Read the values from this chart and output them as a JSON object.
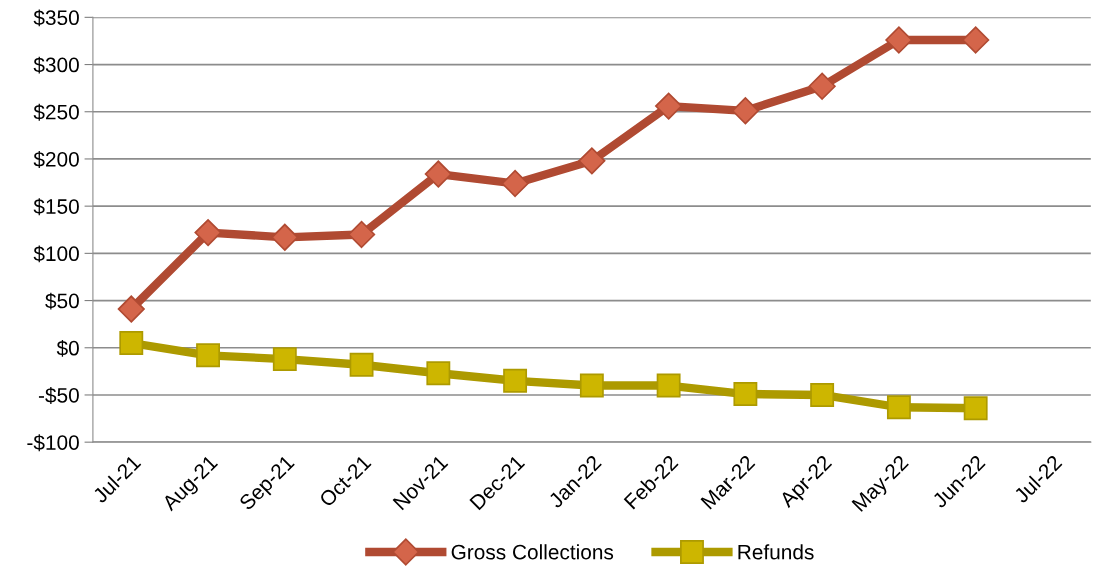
{
  "chart_data": {
    "type": "line",
    "categories": [
      "Jul-21",
      "Aug-21",
      "Sep-21",
      "Oct-21",
      "Nov-21",
      "Dec-21",
      "Jan-22",
      "Feb-22",
      "Mar-22",
      "Apr-22",
      "May-22",
      "Jun-22",
      "Jul-22"
    ],
    "series": [
      {
        "name": "Gross Collections",
        "color": "#b04a32",
        "marker": "diamond",
        "values": [
          41,
          122,
          117,
          120,
          184,
          174,
          198,
          256,
          251,
          277,
          326,
          326,
          null
        ]
      },
      {
        "name": "Refunds",
        "color": "#ad9a00",
        "marker": "square",
        "values": [
          5,
          -8,
          -12,
          -18,
          -27,
          -35,
          -40,
          -40,
          -49,
          -50,
          -63,
          -64,
          null
        ]
      }
    ],
    "ylim": [
      -100,
      350
    ],
    "yticks": [
      {
        "value": -100,
        "label": "-$100"
      },
      {
        "value": -50,
        "label": "-$50"
      },
      {
        "value": 0,
        "label": "$0"
      },
      {
        "value": 50,
        "label": "$50"
      },
      {
        "value": 100,
        "label": "$100"
      },
      {
        "value": 150,
        "label": "$150"
      },
      {
        "value": 200,
        "label": "$200"
      },
      {
        "value": 250,
        "label": "$250"
      },
      {
        "value": 300,
        "label": "$300"
      },
      {
        "value": 350,
        "label": "$350"
      }
    ],
    "grid": "y",
    "legend": "bottom",
    "line_style": "solid"
  }
}
